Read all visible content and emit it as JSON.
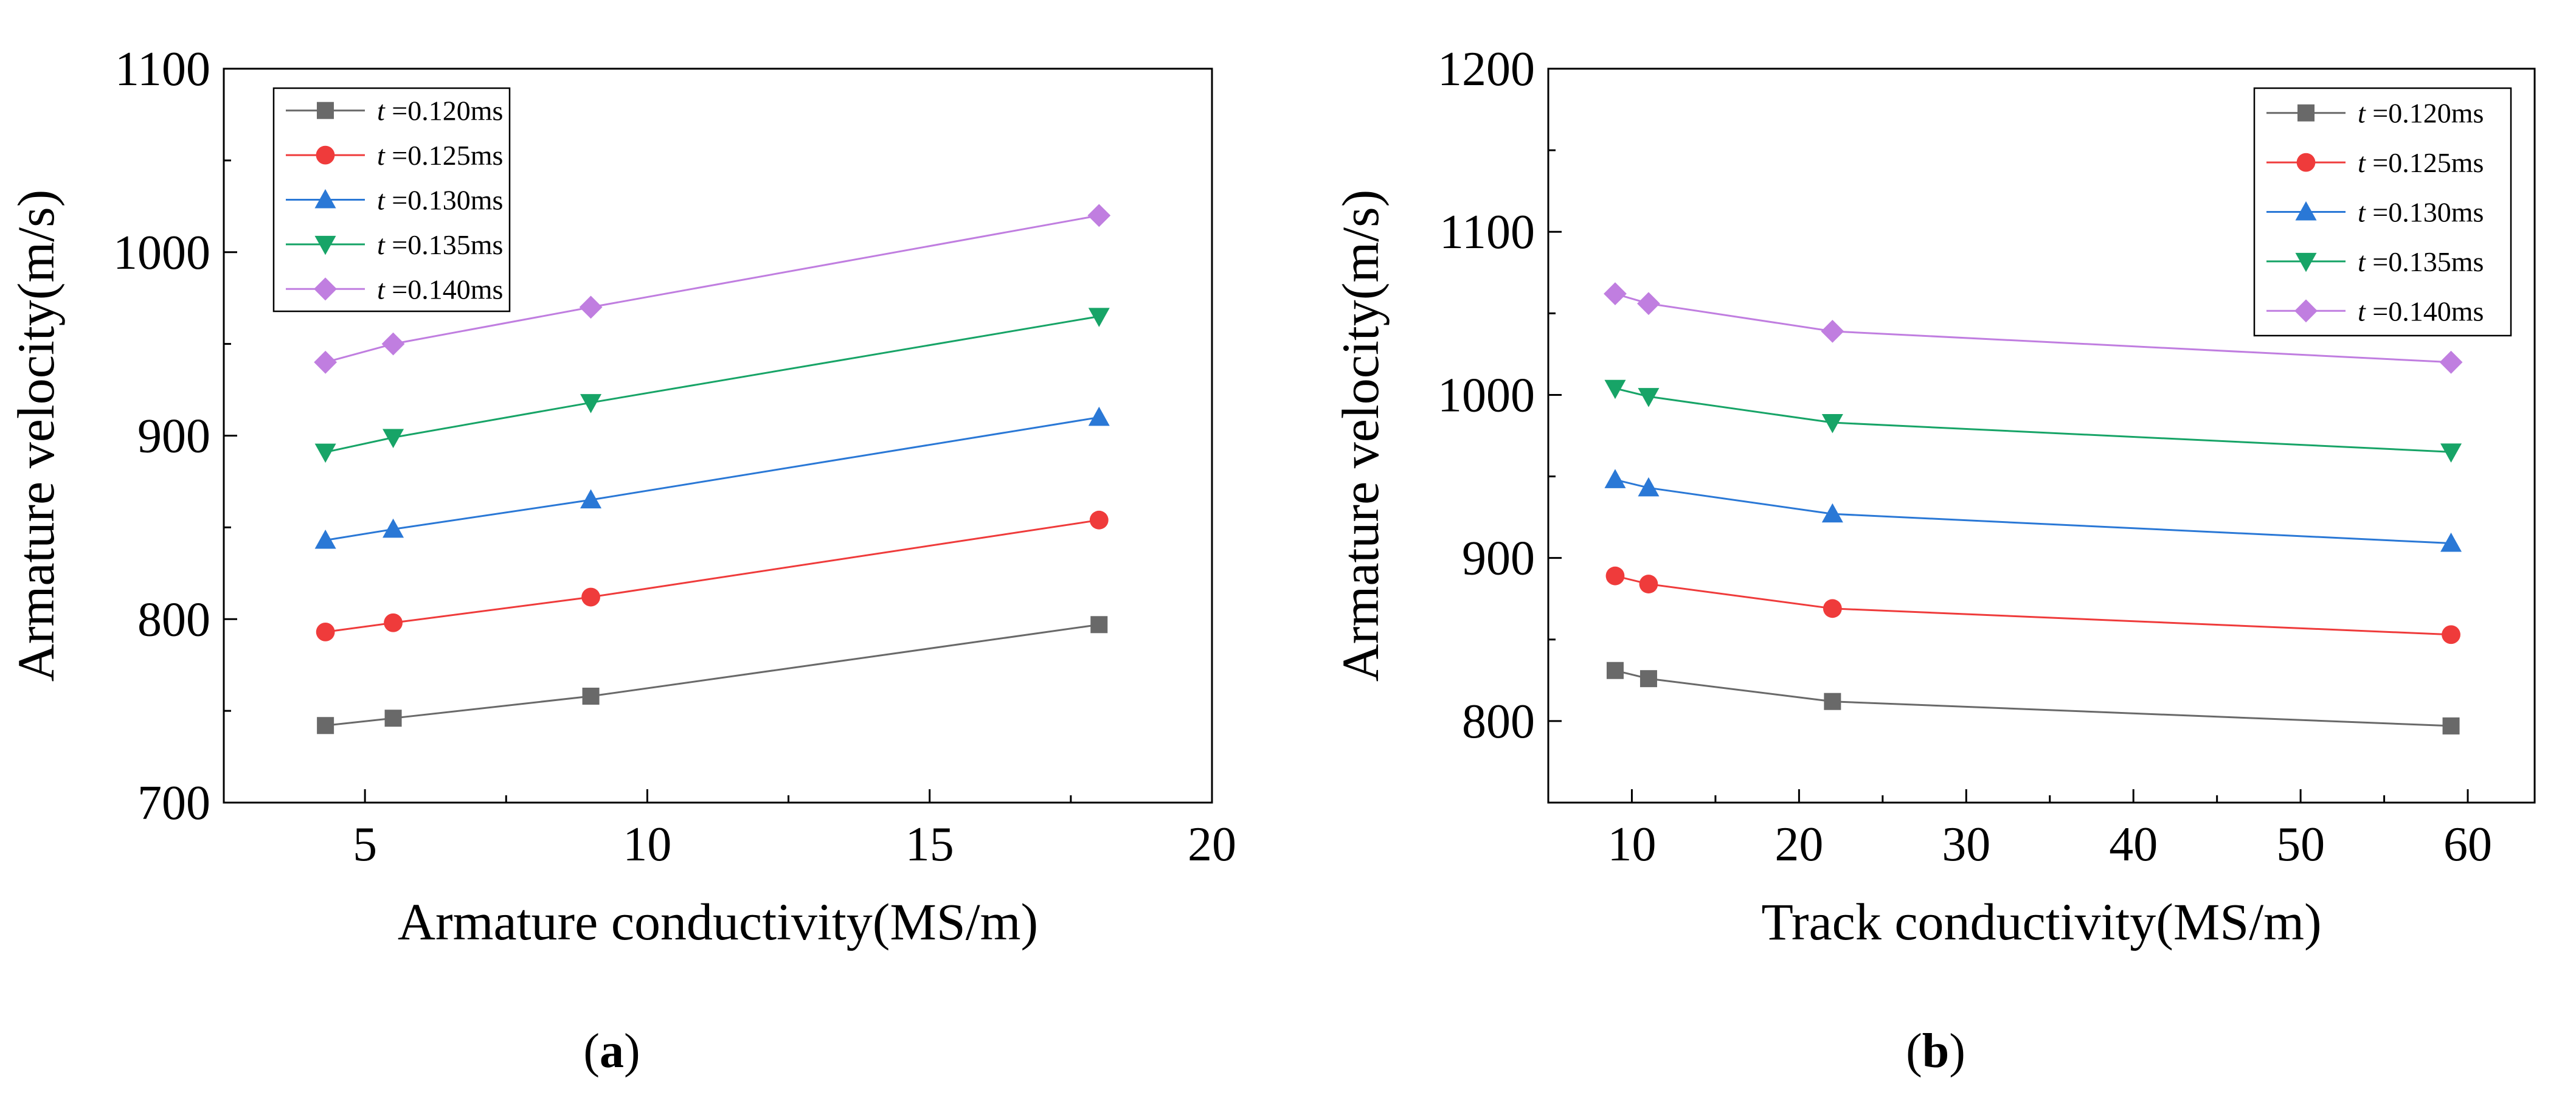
{
  "chart_data": [
    {
      "type": "line",
      "panel": "a",
      "caption_letter": "a",
      "xlabel": "Armature conductivity(MS/m)",
      "ylabel": "Armature velocity(m/s)",
      "xlim": [
        2.5,
        20
      ],
      "ylim": [
        700,
        1100
      ],
      "x_ticks": [
        5,
        10,
        15,
        20
      ],
      "y_ticks": [
        700,
        800,
        900,
        1000,
        1100
      ],
      "x_minor_ticks": [
        7.5,
        12.5,
        17.5
      ],
      "y_minor_ticks": [
        750,
        850,
        950,
        1050
      ],
      "legend_position": "top-left",
      "x": [
        4.3,
        5.5,
        9,
        18
      ],
      "series": [
        {
          "name_var": "t",
          "name_value": " =0.120ms",
          "color": "#696969",
          "marker": "square",
          "values": [
            742,
            746,
            758,
            797
          ]
        },
        {
          "name_var": "t",
          "name_value": " =0.125ms",
          "color": "#ef3b3b",
          "marker": "circle",
          "values": [
            793,
            798,
            812,
            854
          ]
        },
        {
          "name_var": "t",
          "name_value": " =0.130ms",
          "color": "#2a78d6",
          "marker": "triangle-up",
          "values": [
            843,
            849,
            865,
            910
          ]
        },
        {
          "name_var": "t",
          "name_value": " =0.135ms",
          "color": "#17a467",
          "marker": "triangle-down",
          "values": [
            891,
            899,
            918,
            965
          ]
        },
        {
          "name_var": "t",
          "name_value": " =0.140ms",
          "color": "#c07ee0",
          "marker": "diamond",
          "values": [
            940,
            950,
            970,
            1020
          ]
        }
      ]
    },
    {
      "type": "line",
      "panel": "b",
      "caption_letter": "b",
      "xlabel": "Track conductivity(MS/m)",
      "ylabel": "Armature velocity(m/s)",
      "xlim": [
        5,
        64
      ],
      "ylim": [
        750,
        1200
      ],
      "x_ticks": [
        10,
        20,
        30,
        40,
        50,
        60
      ],
      "y_ticks": [
        800,
        900,
        1000,
        1100,
        1200
      ],
      "x_minor_ticks": [
        15,
        25,
        35,
        45,
        55
      ],
      "y_minor_ticks": [
        850,
        950,
        1050,
        1150
      ],
      "legend_position": "top-right",
      "x": [
        9,
        11,
        22,
        59
      ],
      "series": [
        {
          "name_var": "t",
          "name_value": " =0.120ms",
          "color": "#696969",
          "marker": "square",
          "values": [
            831,
            826,
            812,
            797
          ]
        },
        {
          "name_var": "t",
          "name_value": " =0.125ms",
          "color": "#ef3b3b",
          "marker": "circle",
          "values": [
            889,
            884,
            869,
            853
          ]
        },
        {
          "name_var": "t",
          "name_value": " =0.130ms",
          "color": "#2a78d6",
          "marker": "triangle-up",
          "values": [
            948,
            943,
            927,
            909
          ]
        },
        {
          "name_var": "t",
          "name_value": " =0.135ms",
          "color": "#17a467",
          "marker": "triangle-down",
          "values": [
            1004,
            999,
            983,
            965
          ]
        },
        {
          "name_var": "t",
          "name_value": " =0.140ms",
          "color": "#c07ee0",
          "marker": "diamond",
          "values": [
            1062,
            1056,
            1039,
            1020
          ]
        }
      ]
    }
  ]
}
